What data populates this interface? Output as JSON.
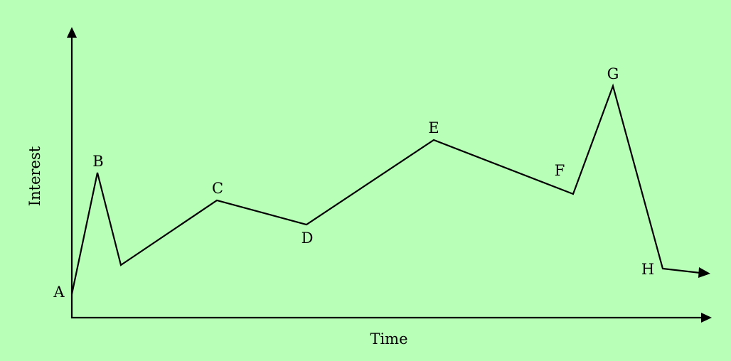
{
  "colors": {
    "background": "#b8ffb8",
    "stroke": "#000000"
  },
  "axes": {
    "x_label": "Time",
    "y_label": "Interest"
  },
  "points": [
    {
      "label": "A"
    },
    {
      "label": "B"
    },
    {
      "label": ""
    },
    {
      "label": "C"
    },
    {
      "label": "D"
    },
    {
      "label": "E"
    },
    {
      "label": "F"
    },
    {
      "label": "G"
    },
    {
      "label": "H"
    }
  ]
}
